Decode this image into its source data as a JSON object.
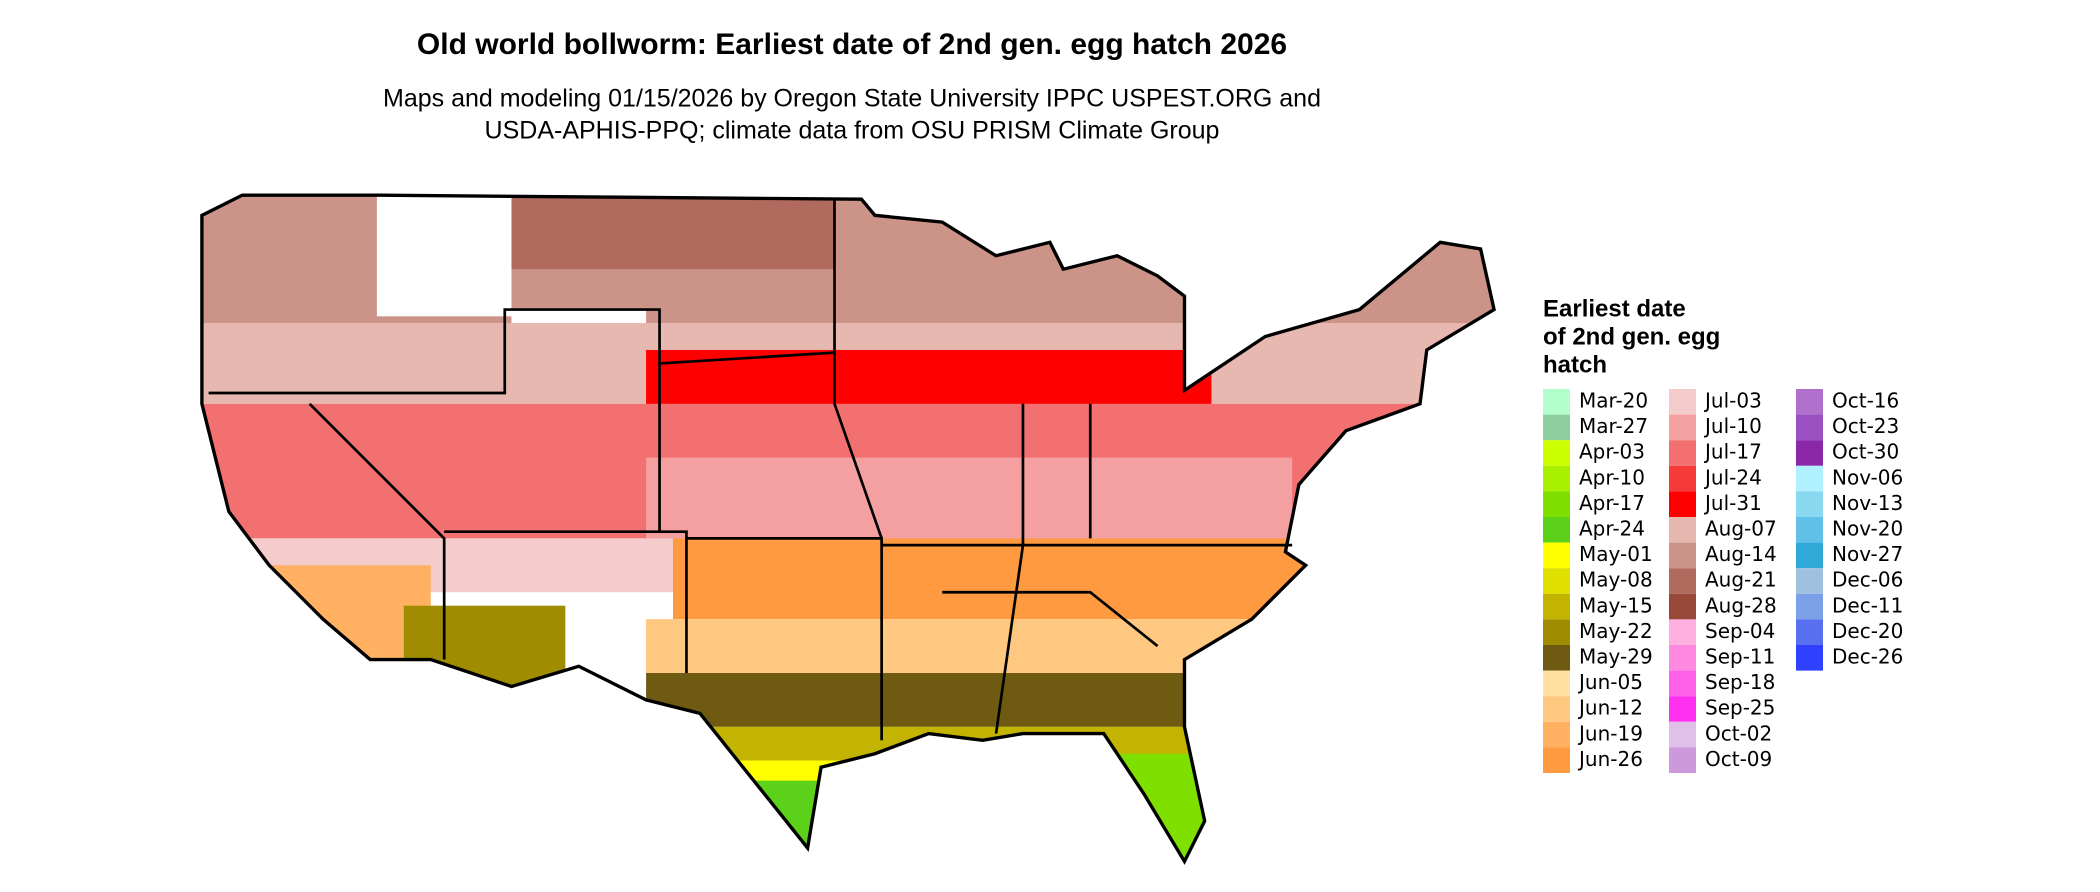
{
  "title": "Old world bollworm: Earliest date of 2nd gen. egg hatch 2026",
  "subtitle": [
    "Maps and modeling 01/15/2026 by Oregon State University IPPC USPEST.ORG and",
    "USDA-APHIS-PPQ; climate data from OSU PRISM Climate Group"
  ],
  "legend": {
    "title": [
      "Earliest date",
      "of 2nd gen. egg",
      "hatch"
    ],
    "items": [
      {
        "label": "Mar-20",
        "color": "#b3ffcc"
      },
      {
        "label": "Mar-27",
        "color": "#8fd19e"
      },
      {
        "label": "Apr-03",
        "color": "#ccff00"
      },
      {
        "label": "Apr-10",
        "color": "#a8f000"
      },
      {
        "label": "Apr-17",
        "color": "#7fe000"
      },
      {
        "label": "Apr-24",
        "color": "#5cd11a"
      },
      {
        "label": "May-01",
        "color": "#ffff00"
      },
      {
        "label": "May-08",
        "color": "#e0e000"
      },
      {
        "label": "May-15",
        "color": "#c2b400"
      },
      {
        "label": "May-22",
        "color": "#a08c00"
      },
      {
        "label": "May-29",
        "color": "#6e5a10"
      },
      {
        "label": "Jun-05",
        "color": "#ffe0a0"
      },
      {
        "label": "Jun-12",
        "color": "#ffc880"
      },
      {
        "label": "Jun-19",
        "color": "#ffb060"
      },
      {
        "label": "Jun-26",
        "color": "#ff9a40"
      },
      {
        "label": "Jul-03",
        "color": "#f5cccc"
      },
      {
        "label": "Jul-10",
        "color": "#f5a0a0"
      },
      {
        "label": "Jul-17",
        "color": "#f27070"
      },
      {
        "label": "Jul-24",
        "color": "#f53a3a"
      },
      {
        "label": "Jul-31",
        "color": "#ff0000"
      },
      {
        "label": "Aug-07",
        "color": "#e6b8b0"
      },
      {
        "label": "Aug-14",
        "color": "#cc9488"
      },
      {
        "label": "Aug-21",
        "color": "#b06a5e"
      },
      {
        "label": "Aug-28",
        "color": "#984838"
      },
      {
        "label": "Sep-04",
        "color": "#ffb0e0"
      },
      {
        "label": "Sep-11",
        "color": "#ff88e0"
      },
      {
        "label": "Sep-18",
        "color": "#ff60e8"
      },
      {
        "label": "Sep-25",
        "color": "#ff30f0"
      },
      {
        "label": "Oct-02",
        "color": "#e0c0e8"
      },
      {
        "label": "Oct-09",
        "color": "#cc99dd"
      },
      {
        "label": "Oct-16",
        "color": "#b070cc"
      },
      {
        "label": "Oct-23",
        "color": "#9a50c0"
      },
      {
        "label": "Oct-30",
        "color": "#8a28a8"
      },
      {
        "label": "Nov-06",
        "color": "#b0f0ff"
      },
      {
        "label": "Nov-13",
        "color": "#88d8f0"
      },
      {
        "label": "Nov-20",
        "color": "#60c0e8"
      },
      {
        "label": "Nov-27",
        "color": "#30a8d8"
      },
      {
        "label": "Dec-06",
        "color": "#a0c0e0"
      },
      {
        "label": "Dec-11",
        "color": "#7aa0e8"
      },
      {
        "label": "Dec-20",
        "color": "#5870f0"
      },
      {
        "label": "Dec-26",
        "color": "#3040ff"
      }
    ]
  }
}
